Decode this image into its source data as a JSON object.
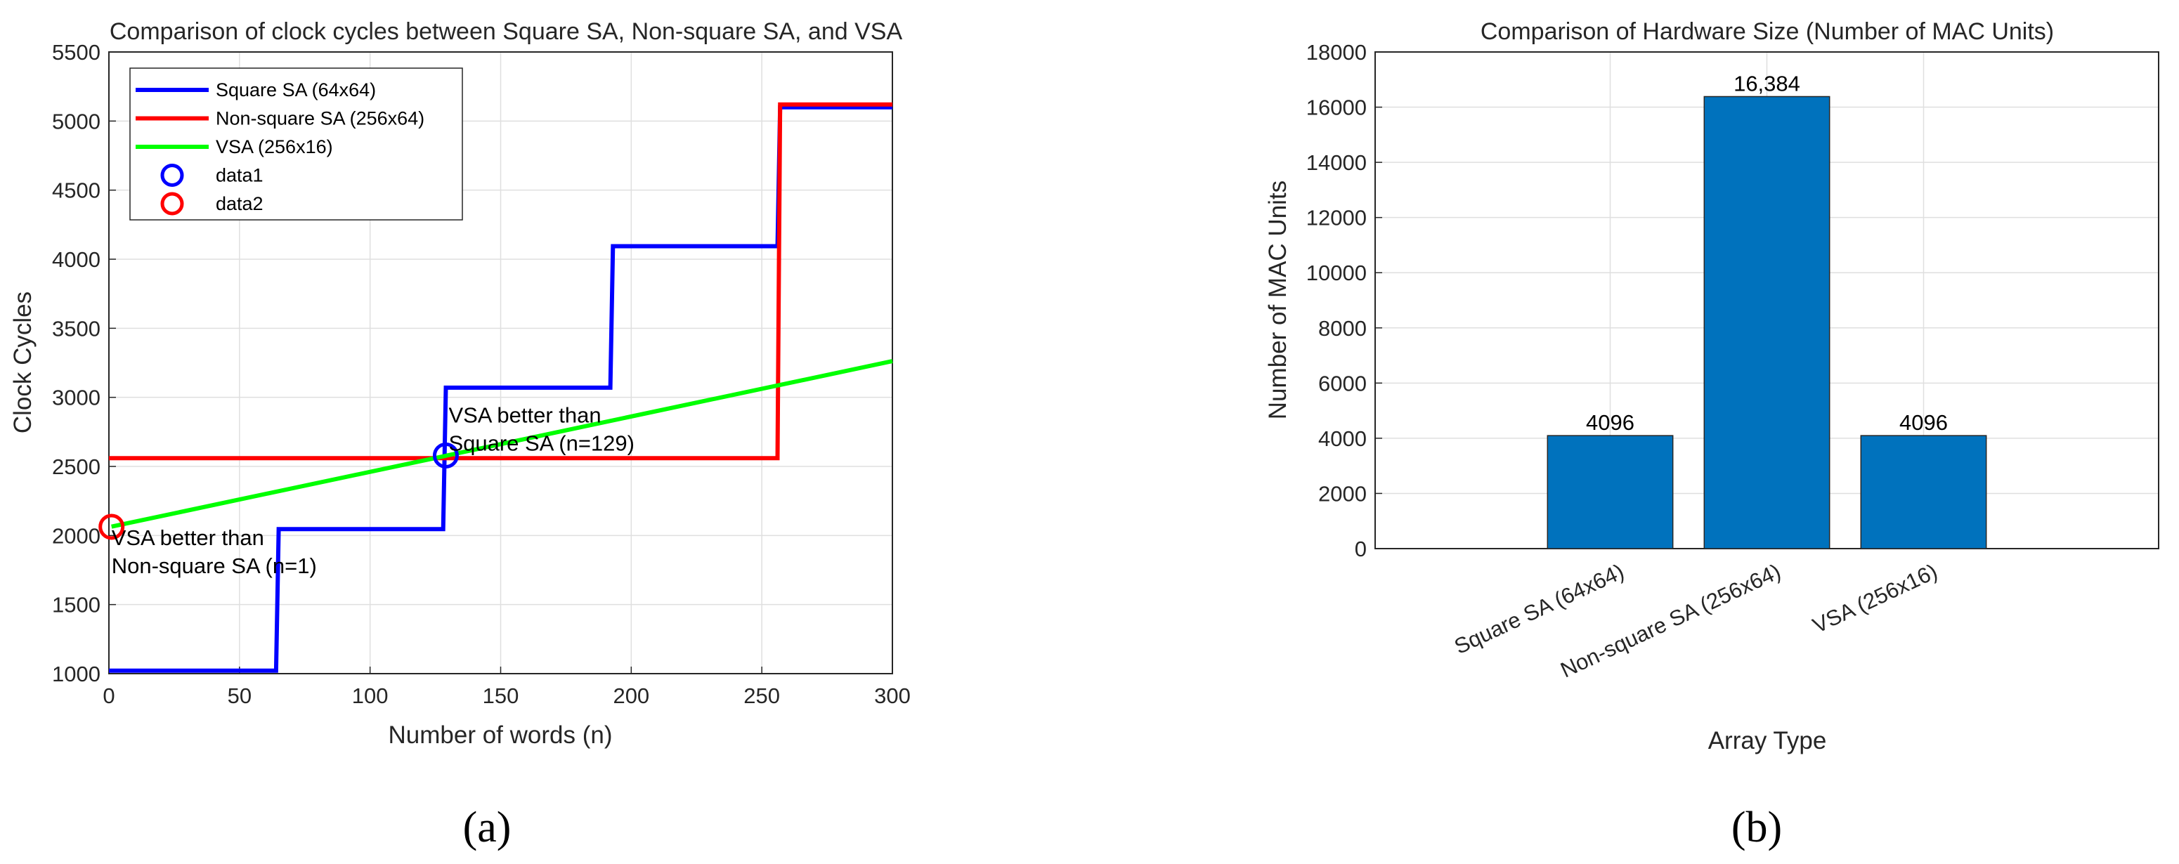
{
  "chart_data": [
    {
      "type": "line",
      "panel_label": "(a)",
      "title": "Comparison of clock cycles between Square SA, Non-square SA, and VSA",
      "xlabel": "Number of words (n)",
      "ylabel": "Clock Cycles",
      "xlim": [
        0,
        300
      ],
      "ylim": [
        1000,
        5500
      ],
      "xticks": [
        0,
        50,
        100,
        150,
        200,
        250,
        300
      ],
      "yticks": [
        1000,
        1500,
        2000,
        2500,
        3000,
        3500,
        4000,
        4500,
        5000,
        5500
      ],
      "grid": true,
      "legend_position": "top-left",
      "series": [
        {
          "name": "Square SA (64x64)",
          "color": "#0000ff",
          "style": "step",
          "x": [
            0,
            64,
            65,
            128,
            129,
            192,
            193,
            256,
            257,
            300
          ],
          "y": [
            1022,
            1022,
            2046,
            2046,
            3070,
            3070,
            4094,
            4094,
            5100,
            5100
          ]
        },
        {
          "name": "Non-square SA (256x64)",
          "color": "#ff0000",
          "style": "step",
          "x": [
            0,
            256,
            257,
            300
          ],
          "y": [
            2560,
            2560,
            5120,
            5120
          ]
        },
        {
          "name": "VSA (256x16)",
          "color": "#00ff00",
          "style": "line",
          "x": [
            1,
            300
          ],
          "y": [
            2064,
            3262
          ]
        },
        {
          "name": "data1",
          "color": "#0000ff",
          "style": "marker",
          "x": [
            129
          ],
          "y": [
            2579
          ]
        },
        {
          "name": "data2",
          "color": "#ff0000",
          "style": "marker",
          "x": [
            1
          ],
          "y": [
            2063
          ]
        }
      ],
      "annotations": [
        {
          "lines": [
            "VSA better than",
            "Square SA (n=129)"
          ],
          "x": 129,
          "y": 2579
        },
        {
          "lines": [
            "VSA better than",
            "Non-square SA (n=1)"
          ],
          "x": 1,
          "y": 2063
        }
      ]
    },
    {
      "type": "bar",
      "panel_label": "(b)",
      "title": "Comparison of Hardware Size (Number of MAC Units)",
      "xlabel": "Array Type",
      "ylabel": "Number of MAC Units",
      "categories": [
        "Square SA (64x64)",
        "Non-square SA (256x64)",
        "VSA (256x16)"
      ],
      "values": [
        4096,
        16384,
        4096
      ],
      "data_labels": [
        "4096",
        "16,384",
        "4096"
      ],
      "ylim": [
        0,
        18000
      ],
      "yticks": [
        0,
        2000,
        4000,
        6000,
        8000,
        10000,
        12000,
        14000,
        16000,
        18000
      ],
      "grid": true,
      "bar_color": "#0072bd"
    }
  ]
}
